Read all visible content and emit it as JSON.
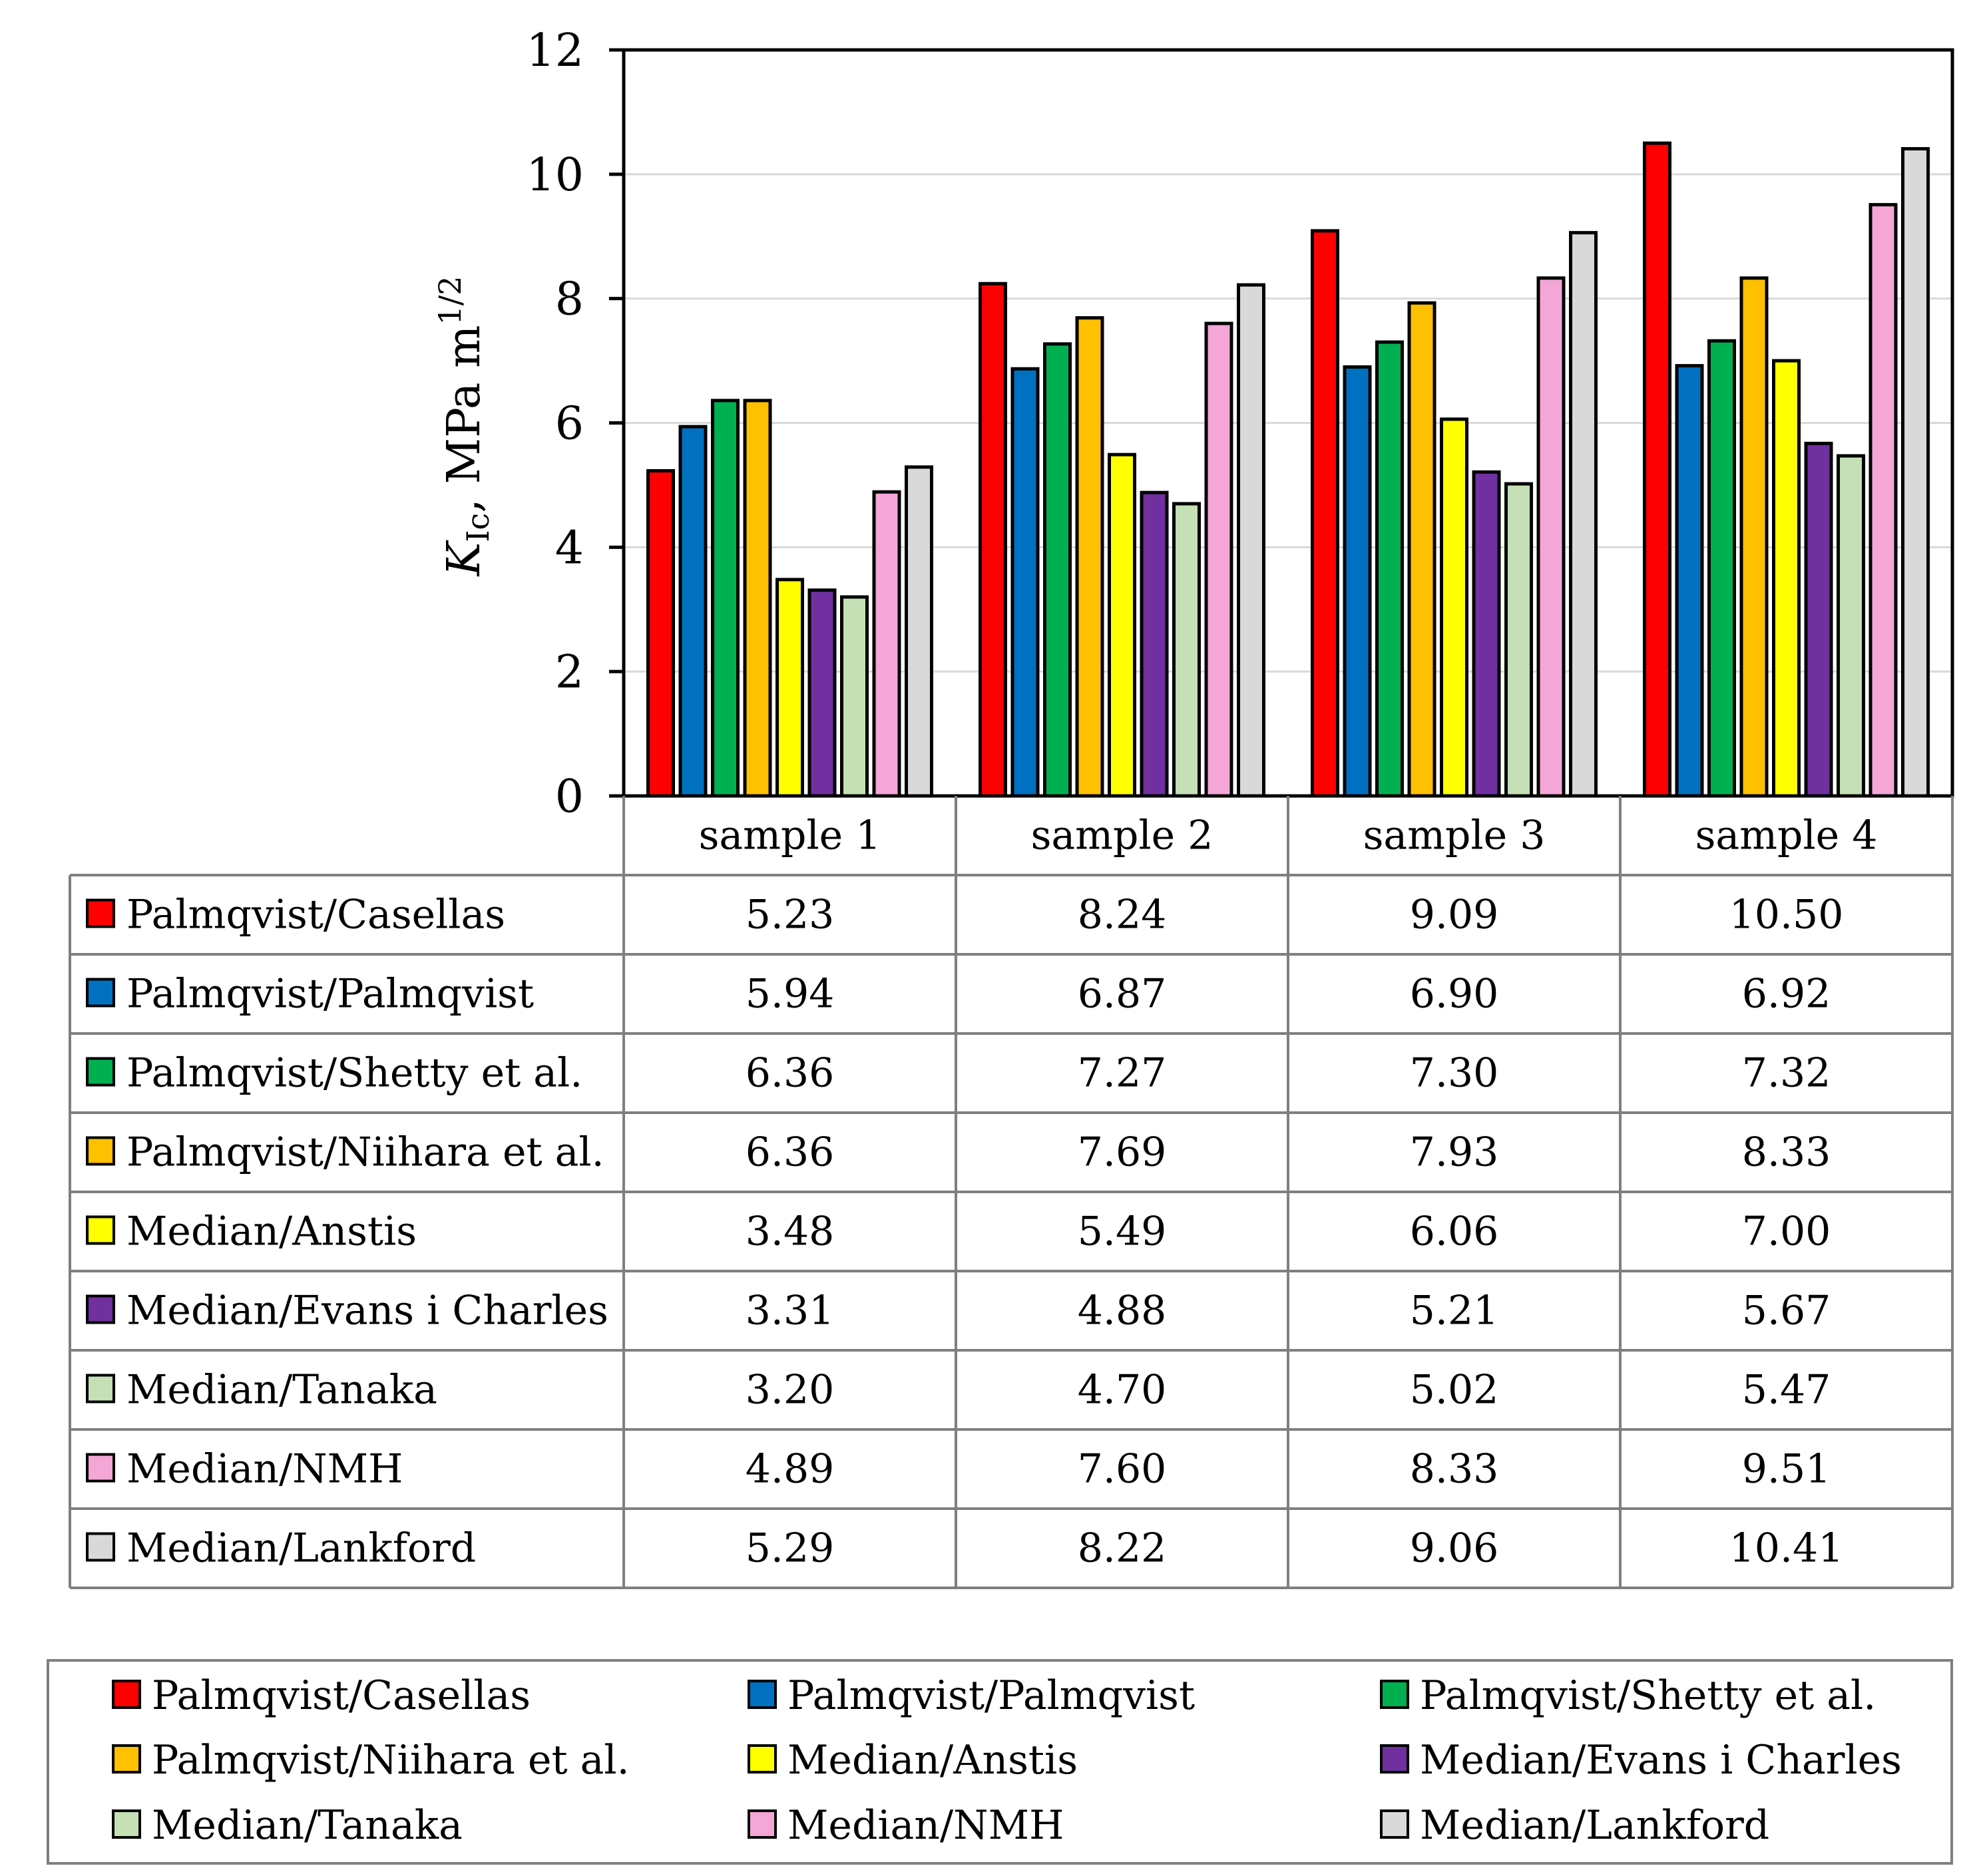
{
  "chart_data": {
    "type": "bar",
    "title": "",
    "xlabel": "",
    "ylabel": "K",
    "ylabel_subscript": "Ic",
    "ylabel_rest": ", MPa m",
    "ylabel_superscript": "1/2",
    "ylim": [
      0,
      12
    ],
    "yticks": [
      "0",
      "2",
      "4",
      "6",
      "8",
      "10",
      "12"
    ],
    "gridlines": true,
    "legend_position": "bottom",
    "categories": [
      "sample 1",
      "sample 2",
      "sample 3",
      "sample 4"
    ],
    "series": [
      {
        "name": "Palmqvist/Casellas",
        "color": "#ff0000",
        "values": [
          5.23,
          8.24,
          9.09,
          10.5
        ],
        "labels": [
          "5.23",
          "8.24",
          "9.09",
          "10.50"
        ]
      },
      {
        "name": "Palmqvist/Palmqvist",
        "color": "#0070c0",
        "values": [
          5.94,
          6.87,
          6.9,
          6.92
        ],
        "labels": [
          "5.94",
          "6.87",
          "6.90",
          "6.92"
        ]
      },
      {
        "name": "Palmqvist/Shetty et al.",
        "color": "#00b050",
        "values": [
          6.36,
          7.27,
          7.3,
          7.32
        ],
        "labels": [
          "6.36",
          "7.27",
          "7.30",
          "7.32"
        ]
      },
      {
        "name": "Palmqvist/Niihara et al.",
        "color": "#ffc000",
        "values": [
          6.36,
          7.69,
          7.93,
          8.33
        ],
        "labels": [
          "6.36",
          "7.69",
          "7.93",
          "8.33"
        ]
      },
      {
        "name": "Median/Anstis",
        "color": "#ffff00",
        "values": [
          3.48,
          5.49,
          6.06,
          7.0
        ],
        "labels": [
          "3.48",
          "5.49",
          "6.06",
          "7.00"
        ]
      },
      {
        "name": "Median/Evans i Charles",
        "color": "#7030a0",
        "values": [
          3.31,
          4.88,
          5.21,
          5.67
        ],
        "labels": [
          "3.31",
          "4.88",
          "5.21",
          "5.67"
        ]
      },
      {
        "name": "Median/Tanaka",
        "color": "#c5e0b4",
        "values": [
          3.2,
          4.7,
          5.02,
          5.47
        ],
        "labels": [
          "3.20",
          "4.70",
          "5.02",
          "5.47"
        ]
      },
      {
        "name": "Median/NMH",
        "color": "#f4a6d7",
        "values": [
          4.89,
          7.6,
          8.33,
          9.51
        ],
        "labels": [
          "4.89",
          "7.60",
          "8.33",
          "9.51"
        ]
      },
      {
        "name": "Median/Lankford",
        "color": "#d9d9d9",
        "values": [
          5.29,
          8.22,
          9.06,
          10.41
        ],
        "labels": [
          "5.29",
          "8.22",
          "9.06",
          "10.41"
        ]
      }
    ]
  }
}
